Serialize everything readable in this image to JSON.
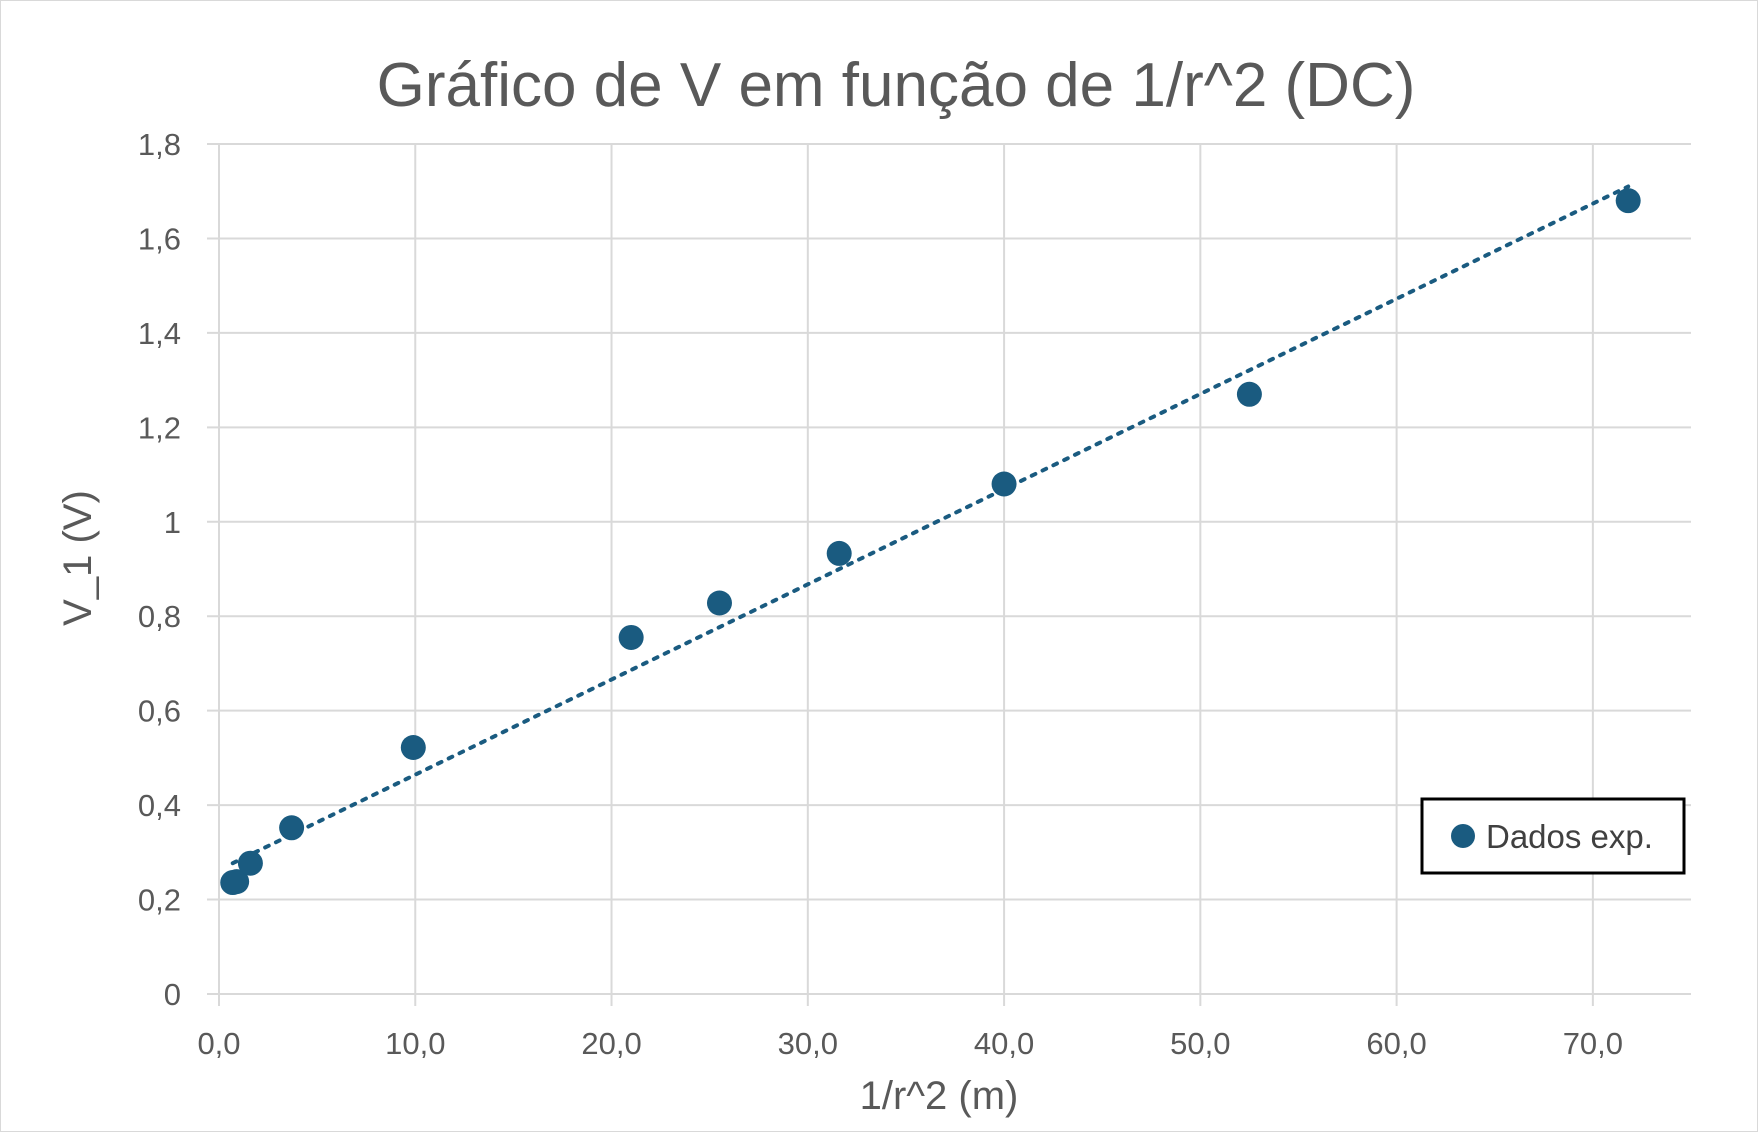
{
  "chart_data": {
    "type": "scatter",
    "title": "Gráfico de V em função de 1/r^2  (DC)",
    "xlabel": "1/r^2  (m)",
    "ylabel": "V_1 (V)",
    "xlim": [
      0,
      75
    ],
    "ylim": [
      0,
      1.8
    ],
    "x_ticks": [
      "0,0",
      "10,0",
      "20,0",
      "30,0",
      "40,0",
      "50,0",
      "60,0",
      "70,0"
    ],
    "x_tick_values": [
      0,
      10,
      20,
      30,
      40,
      50,
      60,
      70
    ],
    "y_ticks": [
      "0",
      "0,2",
      "0,4",
      "0,6",
      "0,8",
      "1",
      "1,2",
      "1,4",
      "1,6",
      "1,8"
    ],
    "y_tick_values": [
      0,
      0.2,
      0.4,
      0.6,
      0.8,
      1.0,
      1.2,
      1.4,
      1.6,
      1.8
    ],
    "grid": true,
    "legend_position": "bottom-right",
    "series": [
      {
        "name": "Dados exp.",
        "color": "#1a5b80",
        "x": [
          0.7,
          0.9,
          1.6,
          3.7,
          9.9,
          21.0,
          25.5,
          31.6,
          40.0,
          52.5,
          71.8
        ],
        "y": [
          0.236,
          0.238,
          0.277,
          0.352,
          0.522,
          0.755,
          0.828,
          0.933,
          1.08,
          1.27,
          1.68
        ]
      }
    ],
    "trendline": {
      "style": "dotted",
      "color": "#1a5b80",
      "x": [
        0.7,
        71.8
      ],
      "y": [
        0.277,
        1.71
      ]
    }
  },
  "legend": {
    "label": "Dados exp."
  },
  "colors": {
    "series": "#1a5b80",
    "grid": "#d9d9d9",
    "text": "#595959"
  }
}
